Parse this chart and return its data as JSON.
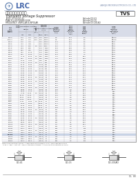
{
  "title_chinese": "瞬态电压抑制二极管",
  "title_english": "Transient Voltage Suppressor",
  "company": "LRC",
  "company_full": "LANGJIU MICROELECTRONICS CO., LTD",
  "part_box": "TVS",
  "spec_left": [
    "JEDEC STYLE:DO-41",
    "PEAK PULSE POWER:500W",
    "FREQUENCY: UNIPOLAR & BIPOLAR"
  ],
  "spec_right": [
    "Cathode:DO-41",
    "Cathode:DO-15",
    "Cathode:DO-201AD"
  ],
  "table_data": [
    [
      "SA5.0",
      "6.40",
      "7.00",
      "10.0",
      "5.00",
      "10000",
      "400",
      "9.2",
      "54.3",
      "5.0",
      "≤1000"
    ],
    [
      "SA5.0A",
      "6.33",
      "7.00",
      "10.0",
      "5.00",
      "10000",
      "400",
      "9.2",
      "54.3",
      "5.0",
      "≤1000"
    ],
    [
      "SA6.0",
      "6.70",
      "7.37",
      "",
      "6.00",
      "10000",
      "400",
      "10.3",
      "48.5",
      "6.0",
      "≤700"
    ],
    [
      "SA6.5",
      "7.15",
      "7.88",
      "",
      "6.50",
      "10000",
      "400",
      "11.2",
      "44.6",
      "6.5",
      "≤700"
    ],
    [
      "SA7.0",
      "7.59",
      "8.36",
      "1.0",
      "6.00",
      "5000",
      "500",
      "12.0",
      "41.7",
      "6.0",
      "≤500"
    ],
    [
      "SA7.5",
      "8.08",
      "8.92",
      "",
      "6.40",
      "1000",
      "500",
      "12.9",
      "38.8",
      "6.4",
      "≤400"
    ],
    [
      "SA8.0",
      "8.65",
      "9.55",
      "",
      "6.40",
      "1000",
      "500",
      "13.6",
      "36.8",
      "6.4",
      "≤350"
    ],
    [
      "SA8.5",
      "9.20",
      "10.10",
      "",
      "6.40",
      "1000",
      "500",
      "14.4",
      "34.7",
      "6.4",
      "≤300"
    ],
    [
      "SA9.0",
      "9.50",
      "10.50",
      "",
      "7.20",
      "1000",
      "500",
      "15.4",
      "32.5",
      "7.2",
      "≤300"
    ],
    [
      "SA10",
      "11.10",
      "12.20",
      "1.0",
      "8.55",
      "1000",
      "500",
      "17.0",
      "29.4",
      "8.55",
      "≤250"
    ],
    [
      "SA10A",
      "9.50",
      "10.50",
      "1.0",
      "8.55",
      "1000",
      "500",
      "17.0",
      "29.4",
      "8.55",
      "≤250"
    ],
    [
      "SA11",
      "10.20",
      "11.80",
      "",
      "8.92",
      "500",
      "10",
      "18.2",
      "27.5",
      "8.92",
      "≤200"
    ],
    [
      "SA12",
      "11.10",
      "12.20",
      "1.0",
      "9.72",
      "200",
      "10",
      "19.9",
      "25.1",
      "9.72",
      "≤200"
    ],
    [
      "SA13",
      "12.10",
      "13.30",
      "",
      "10.50",
      "100",
      "10",
      "21.5",
      "23.3",
      "10.5",
      "≤175"
    ],
    [
      "SA14",
      "13.00",
      "14.30",
      "",
      "11.30",
      "100",
      "10",
      "23.2",
      "21.6",
      "11.3",
      "≤175"
    ],
    [
      "SA15",
      "13.90",
      "15.30",
      "",
      "12.10",
      "100",
      "5",
      "24.4",
      "20.5",
      "12.1",
      "≤175"
    ],
    [
      "SA16",
      "14.90",
      "16.40",
      "1.0",
      "12.90",
      "50",
      "5",
      "26.0",
      "19.2",
      "12.9",
      "≤150"
    ],
    [
      "SA17",
      "15.80",
      "17.40",
      "",
      "13.80",
      "50",
      "5",
      "27.6",
      "18.1",
      "13.8",
      "≤150"
    ],
    [
      "SA18",
      "16.80",
      "18.50",
      "",
      "14.50",
      "50",
      "5",
      "29.2",
      "17.1",
      "14.5",
      "≤150"
    ],
    [
      "SA20",
      "18.80",
      "20.70",
      "1.0",
      "16.20",
      "50",
      "5",
      "32.4",
      "15.4",
      "16.2",
      "≤125"
    ],
    [
      "SA22",
      "20.60",
      "22.70",
      "",
      "17.80",
      "50",
      "5",
      "35.5",
      "14.1",
      "17.8",
      "≤125"
    ],
    [
      "SA24",
      "22.80",
      "25.10",
      "1.0",
      "19.40",
      "50",
      "5",
      "38.9",
      "12.9",
      "19.4",
      "≤100"
    ],
    [
      "SA26",
      "24.30",
      "26.70",
      "",
      "21.00",
      "50",
      "5",
      "42.1",
      "11.9",
      "21.0",
      "≤100"
    ],
    [
      "SA28",
      "26.20",
      "28.90",
      "",
      "22.60",
      "25",
      "5",
      "45.4",
      "11.0",
      "22.6",
      "≤100"
    ],
    [
      "SA30",
      "28.00",
      "31.00",
      "1.0",
      "24.30",
      "25",
      "5",
      "48.4",
      "10.3",
      "24.3",
      "≤100"
    ],
    [
      "SA33",
      "30.80",
      "34.10",
      "",
      "26.80",
      "25",
      "5",
      "53.3",
      "9.4",
      "26.8",
      "≤100"
    ],
    [
      "SA36",
      "33.60",
      "37.10",
      "",
      "29.10",
      "25",
      "5",
      "58.1",
      "8.6",
      "29.1",
      "≤75"
    ],
    [
      "SA40",
      "37.30",
      "41.30",
      "1.0",
      "32.40",
      "25",
      "5",
      "64.5",
      "7.8",
      "32.4",
      "≤75"
    ],
    [
      "SA43",
      "40.10",
      "44.40",
      "",
      "34.80",
      "25",
      "5",
      "69.4",
      "7.2",
      "34.8",
      "≤75"
    ],
    [
      "SA45",
      "42.00",
      "46.50",
      "",
      "36.40",
      "25",
      "5",
      "72.7",
      "6.9",
      "36.4",
      "≤75"
    ],
    [
      "SA48",
      "44.90",
      "49.60",
      "",
      "38.90",
      "25",
      "5",
      "77.8",
      "6.4",
      "38.9",
      "≤75"
    ],
    [
      "SA51",
      "47.80",
      "52.80",
      "1.0",
      "41.30",
      "10",
      "5",
      "82.4",
      "6.1",
      "41.3",
      "≤50"
    ],
    [
      "SA54",
      "50.60",
      "55.90",
      "",
      "43.80",
      "10",
      "5",
      "87.1",
      "5.7",
      "43.8",
      "≤50"
    ],
    [
      "SA58",
      "54.40",
      "60.00",
      "",
      "46.90",
      "10",
      "5",
      "93.6",
      "5.3",
      "46.9",
      "≤50"
    ],
    [
      "SA60",
      "56.10",
      "62.00",
      "",
      "48.40",
      "10",
      "5",
      "96.8",
      "5.2",
      "48.4",
      "≤50"
    ],
    [
      "SA64",
      "59.80",
      "66.00",
      "1.0",
      "51.50",
      "10",
      "5",
      "103",
      "4.9",
      "51.5",
      "≤50"
    ],
    [
      "SA70",
      "65.10",
      "71.90",
      "",
      "56.40",
      "10",
      "5",
      "113",
      "4.4",
      "56.4",
      "≤50"
    ],
    [
      "SA75",
      "70.00",
      "77.00",
      "",
      "60.70",
      "10",
      "5",
      "121",
      "4.1",
      "60.7",
      "≤50"
    ],
    [
      "SA78",
      "72.80",
      "80.00",
      "",
      "63.20",
      "10",
      "5",
      "126",
      "4.0",
      "63.2",
      "≤50"
    ],
    [
      "SA85",
      "79.60",
      "87.70",
      "1.0",
      "68.80",
      "10",
      "5",
      "137",
      "3.6",
      "68.8",
      "≤50"
    ],
    [
      "SA90",
      "84.20",
      "92.90",
      "",
      "72.90",
      "10",
      "5",
      "146",
      "3.4",
      "72.9",
      "≤50"
    ],
    [
      "SA100",
      "93.60",
      "103.0",
      "",
      "81.00",
      "10",
      "5",
      "162",
      "3.1",
      "81.0",
      "≤50"
    ],
    [
      "SA110",
      "103.0",
      "114.0",
      "1.0",
      "89.20",
      "10",
      "5",
      "177",
      "2.8",
      "89.2",
      "≤50"
    ],
    [
      "SA120",
      "112.0",
      "124.0",
      "",
      "97.20",
      "10",
      "5",
      "193",
      "2.6",
      "97.2",
      "≤50"
    ],
    [
      "SA130",
      "121.0",
      "135.0",
      "",
      "105.0",
      "10",
      "5",
      "209",
      "2.4",
      "105",
      "≤50"
    ],
    [
      "SA140",
      "130.0",
      "146.0",
      "1.0",
      "113.0",
      "10",
      "5",
      "220",
      "2.3",
      "113",
      "≤50"
    ],
    [
      "SA150",
      "140.0",
      "155.0",
      "",
      "121.0",
      "10",
      "5",
      "238",
      "2.1",
      "121",
      "≤50"
    ],
    [
      "SA160",
      "150.0",
      "166.0",
      "",
      "130.0",
      "10",
      "5",
      "260",
      "1.9",
      "130",
      "≤50"
    ],
    [
      "SA170",
      "158.0",
      "175.0",
      "1.0",
      "137.0",
      "10",
      "5",
      "275",
      "1.8",
      "137",
      "≤50"
    ],
    [
      "SA180",
      "168.0",
      "185.0",
      "",
      "146.0",
      "10",
      "5",
      "292",
      "1.7",
      "146",
      "≤50"
    ],
    [
      "SA200",
      "187.0",
      "207.0",
      "",
      "162.0",
      "10",
      "5",
      "324",
      "1.5",
      "162",
      "≤50"
    ]
  ],
  "highlight_row": "SA160A",
  "bg_color": "#FFFFFF",
  "header_bg": "#D8DCE8",
  "table_line_color": "#AAAAAA",
  "packages": [
    "DO-41",
    "DO-15",
    "DO-201AD"
  ],
  "page": "DL  88"
}
